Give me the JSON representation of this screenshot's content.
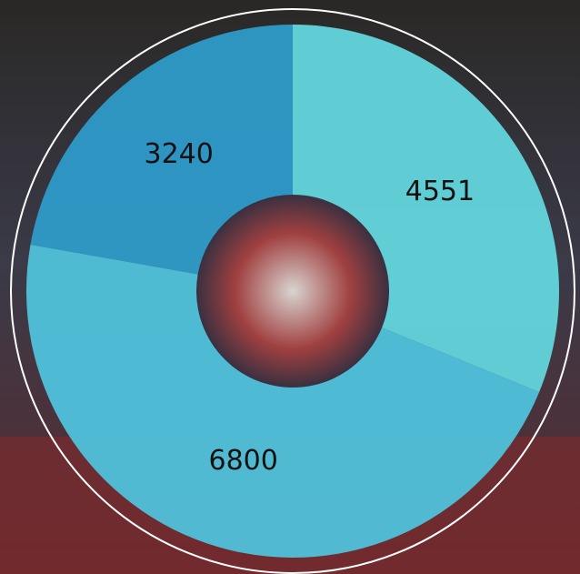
{
  "chart_data": {
    "type": "donut",
    "categories": [
      null,
      null,
      null
    ],
    "values": [
      4551,
      6800,
      3240
    ],
    "colors": [
      "#63d5dc",
      "#4fc2db",
      "#2e9bc9"
    ]
  }
}
